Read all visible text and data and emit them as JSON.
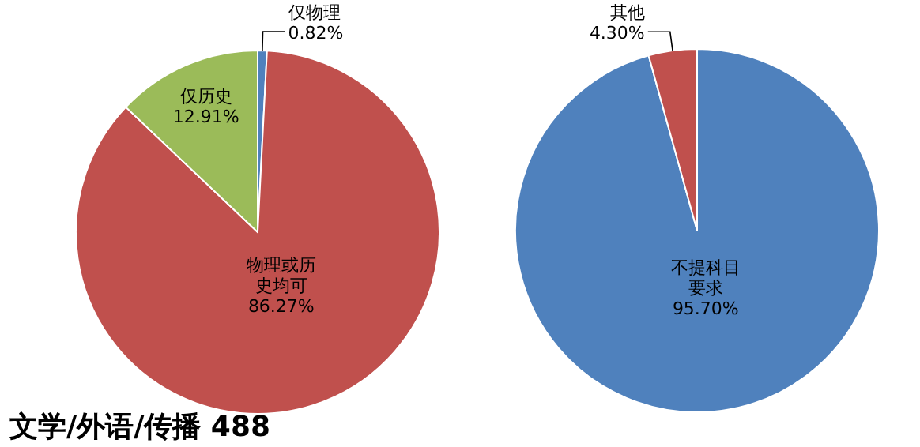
{
  "chart_data": [
    {
      "type": "pie",
      "title": "文学/外语/传播 488",
      "categories": [
        "仅物理",
        "物理或历史均可",
        "仅历史"
      ],
      "values": [
        0.82,
        86.27,
        12.91
      ],
      "colors": [
        "#4f81bd",
        "#c0504d",
        "#9bbb59"
      ],
      "value_labels": [
        "0.82%",
        "86.27%",
        "12.91%"
      ]
    },
    {
      "type": "pie",
      "categories": [
        "不提科目要求",
        "其他"
      ],
      "values": [
        95.7,
        4.3
      ],
      "colors": [
        "#4f81bd",
        "#c0504d"
      ],
      "value_labels": [
        "95.70%",
        "4.30%"
      ]
    }
  ]
}
